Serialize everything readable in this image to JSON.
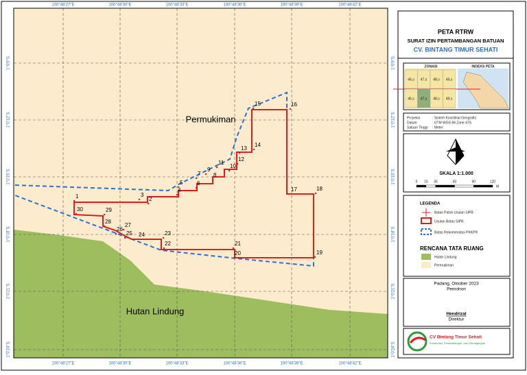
{
  "map": {
    "lon_labels": [
      "100°48'27\"E",
      "100°48'30\"E",
      "100°48'33\"E",
      "100°48'36\"E",
      "100°48'39\"E",
      "100°48'42\"E"
    ],
    "lat_labels": [
      "1°0'9\"S",
      "1°0'12\"S",
      "1°0'15\"S",
      "1°0'18\"S",
      "1°0'21\"S",
      "1°0'24\"S"
    ],
    "areas": [
      "Permukiman",
      "Hutan Lindung"
    ],
    "points": [
      "1",
      "2",
      "3",
      "4",
      "5",
      "6",
      "7",
      "8",
      "9",
      "10",
      "11",
      "12",
      "13",
      "14",
      "15",
      "16",
      "17",
      "18",
      "19",
      "20",
      "21",
      "22",
      "23",
      "24",
      "25",
      "26",
      "27",
      "28",
      "29",
      "30"
    ]
  },
  "title_block": {
    "title": "PETA RTRW",
    "subtitle": "SURAT IZIN PERTAMBANGAN BATUAN",
    "company": "CV. BINTANG TIMUR SEHATI"
  },
  "inset": {
    "zonasi": "ZONASI",
    "index": "INDEKS PETA",
    "zones": [
      "46,s",
      "47,s",
      "48,s",
      "49,s",
      "46,s",
      "47,s",
      "48,s",
      "49,s"
    ]
  },
  "info": [
    [
      "Proyeksi",
      ": Sistem Koordinat Geografis"
    ],
    [
      "Datum",
      ": UTM WGS 84 Zone 47S"
    ],
    [
      "Satuan Tinggi",
      ": Meter"
    ]
  ],
  "scale": {
    "label": "SKALA 1:1.000",
    "ticks": [
      0,
      15,
      30,
      60,
      90,
      120
    ],
    "unit": "M"
  },
  "legend": {
    "title": "LEGENDA",
    "items": [
      "Batas Patok Usulan SIPB",
      "Usulan Batas SIPB",
      "Batas Rekomendasi PKKPR"
    ]
  },
  "landuse": {
    "title": "RENCANA TATA RUANG",
    "items": [
      "Hutan Lindung",
      "Permukiman"
    ]
  },
  "signature": {
    "place_date": "Padang,   Oktober 2023",
    "role": "Pemohon",
    "name": "Hendrizal",
    "position": "Direktur"
  },
  "logo": {
    "name": "CV Bintang Timur Sehati",
    "tagline": "Konstruksi, Pertambangan, dan Perdagangan"
  }
}
